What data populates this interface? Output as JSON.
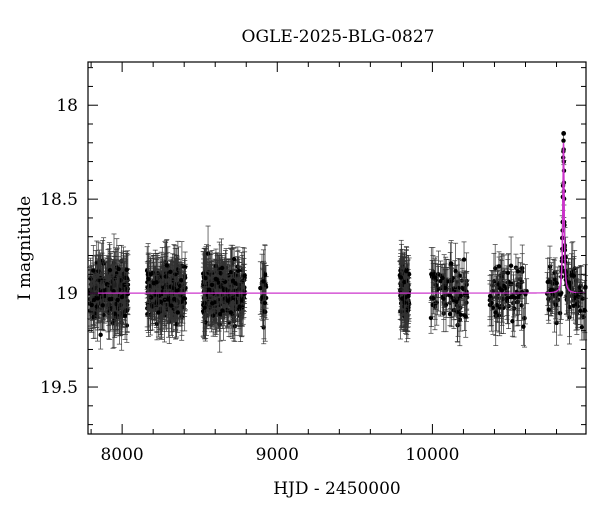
{
  "chart_data": {
    "type": "scatter",
    "title": "OGLE-2025-BLG-0827",
    "xlabel": "HJD - 2450000",
    "ylabel": "I magnitude",
    "xlim": [
      7780,
      10990
    ],
    "ylim": [
      19.75,
      17.77
    ],
    "y_inverted": true,
    "grid": false,
    "x_ticks": [
      {
        "value": 8000,
        "label": "8000"
      },
      {
        "value": 9000,
        "label": "9000"
      },
      {
        "value": 10000,
        "label": "10000"
      }
    ],
    "y_ticks": [
      {
        "value": 18,
        "label": "18"
      },
      {
        "value": 18.5,
        "label": "18.5"
      },
      {
        "value": 19,
        "label": "19"
      },
      {
        "value": 19.5,
        "label": "19.5"
      }
    ],
    "baseline_magnitude": 19.0,
    "observing_seasons": [
      {
        "start": 7790,
        "end": 8040,
        "count": 260
      },
      {
        "start": 8160,
        "end": 8410,
        "count": 260
      },
      {
        "start": 8520,
        "end": 8790,
        "count": 330
      },
      {
        "start": 8890,
        "end": 8930,
        "count": 25
      },
      {
        "start": 9790,
        "end": 9850,
        "count": 110
      },
      {
        "start": 9990,
        "end": 10230,
        "count": 90
      },
      {
        "start": 10370,
        "end": 10620,
        "count": 80
      },
      {
        "start": 10730,
        "end": 10990,
        "count": 90
      }
    ],
    "event": {
      "t0": 10845,
      "peak_magnitude": 18.2,
      "brightest_point": 18.15
    },
    "series": [
      {
        "kind": "points",
        "color": "#000000"
      },
      {
        "kind": "model",
        "color": "#cc33cc"
      }
    ]
  }
}
